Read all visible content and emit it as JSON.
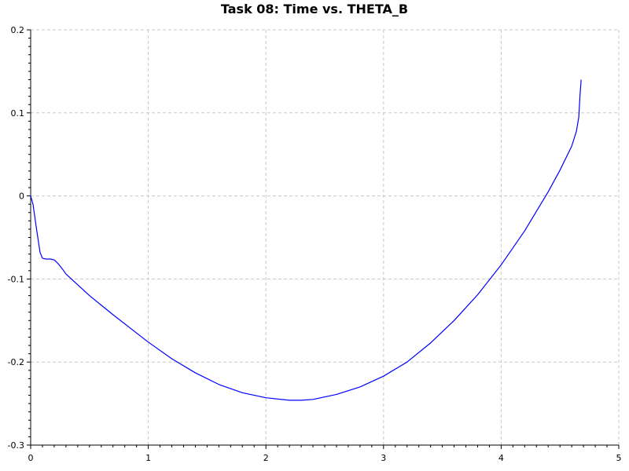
{
  "chart_data": {
    "type": "line",
    "title": "Task 08: Time vs. THETA_B",
    "xlabel": "",
    "ylabel": "",
    "xlim": [
      0,
      5
    ],
    "ylim": [
      -0.3,
      0.2
    ],
    "x_ticks": [
      0,
      1,
      2,
      3,
      4,
      5
    ],
    "x_tick_labels": [
      "0",
      "1",
      "2",
      "3",
      "4",
      "5"
    ],
    "y_ticks": [
      -0.3,
      -0.2,
      -0.1,
      0,
      0.1,
      0.2
    ],
    "y_tick_labels": [
      "-0.3",
      "-0.2",
      "-0.1",
      "0",
      "0.1",
      "0.2"
    ],
    "grid": true,
    "legend": "none",
    "series": [
      {
        "color": "#0000ff",
        "x": [
          0,
          0.02,
          0.05,
          0.08,
          0.1,
          0.13,
          0.17,
          0.2,
          0.23,
          0.27,
          0.3,
          0.4,
          0.5,
          0.7,
          0.9,
          1.0,
          1.2,
          1.4,
          1.6,
          1.8,
          2.0,
          2.2,
          2.3,
          2.4,
          2.6,
          2.8,
          3.0,
          3.2,
          3.4,
          3.6,
          3.8,
          4.0,
          4.2,
          4.4,
          4.5,
          4.6,
          4.64,
          4.66,
          4.67,
          4.68
        ],
        "y": [
          0,
          -0.01,
          -0.04,
          -0.068,
          -0.075,
          -0.076,
          -0.076,
          -0.077,
          -0.081,
          -0.088,
          -0.094,
          -0.107,
          -0.12,
          -0.143,
          -0.165,
          -0.176,
          -0.196,
          -0.213,
          -0.227,
          -0.237,
          -0.243,
          -0.246,
          -0.246,
          -0.245,
          -0.239,
          -0.23,
          -0.217,
          -0.2,
          -0.177,
          -0.15,
          -0.119,
          -0.083,
          -0.042,
          0.005,
          0.031,
          0.06,
          0.078,
          0.095,
          0.12,
          0.14
        ]
      }
    ]
  }
}
